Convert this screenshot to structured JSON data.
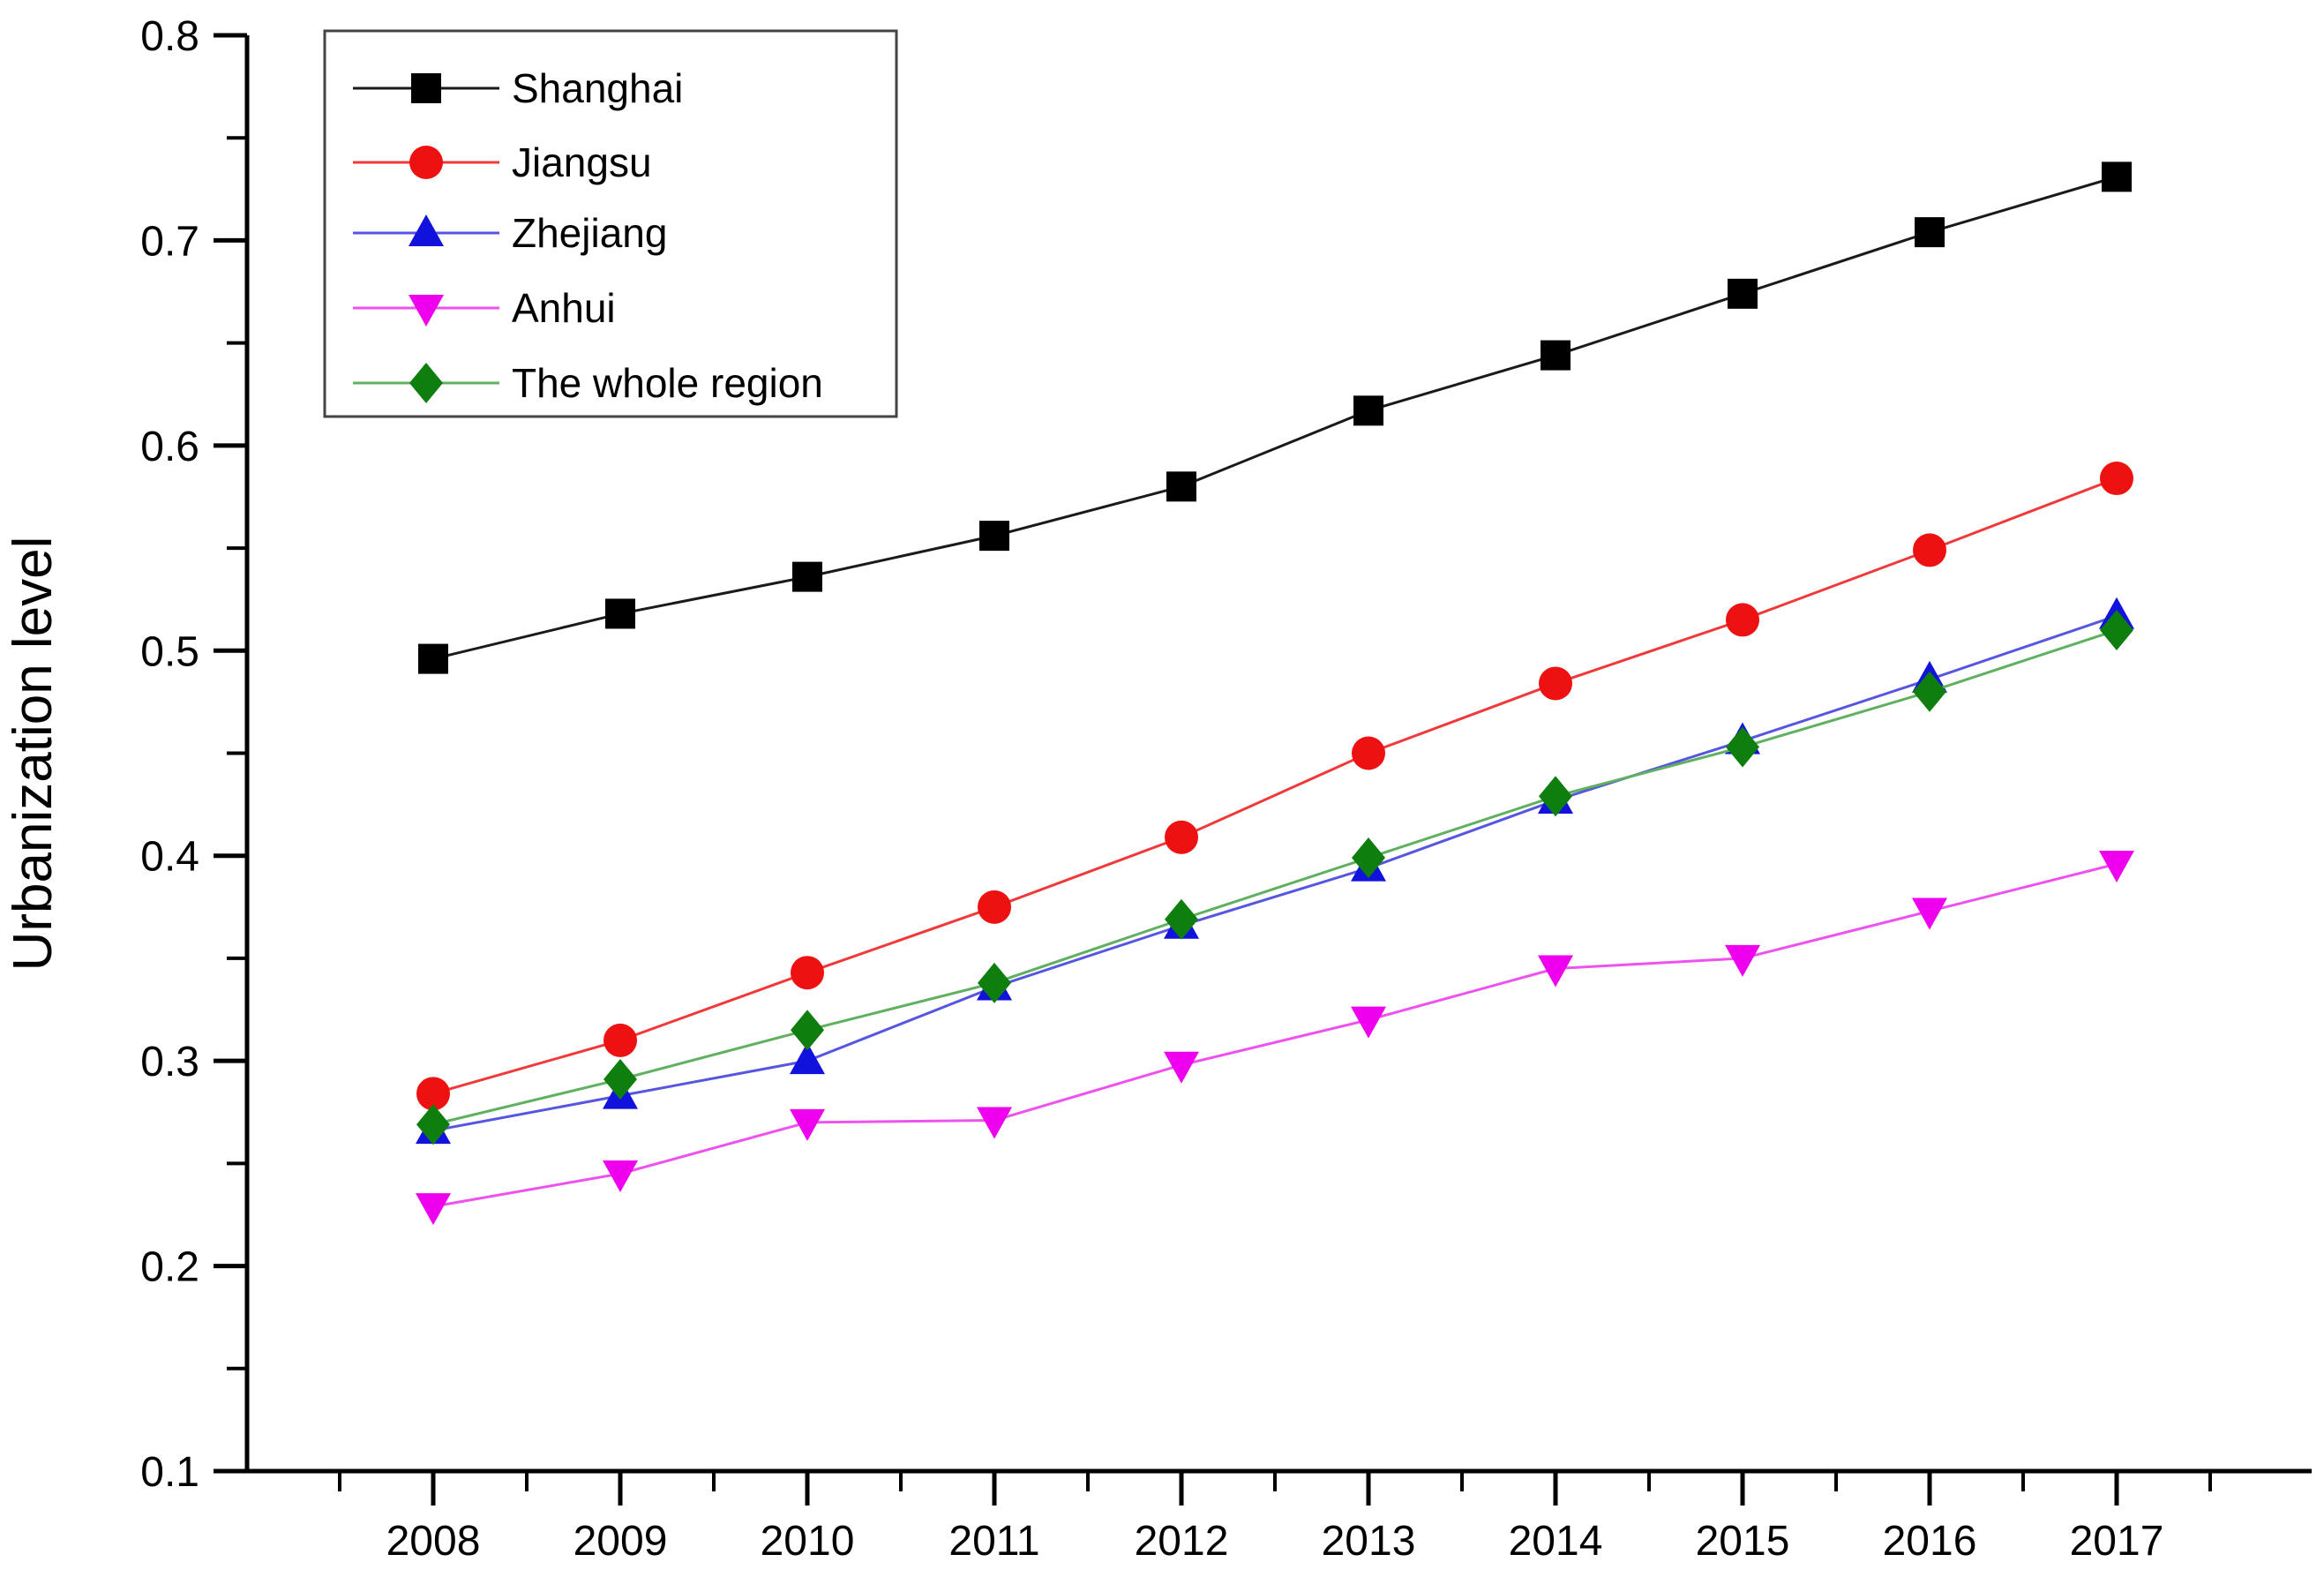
{
  "figure": {
    "background": "#ffffff"
  },
  "chart_data": {
    "type": "line",
    "title": "",
    "xlabel": "",
    "ylabel": "Urbanization level",
    "x": [
      2008,
      2009,
      2010,
      2011,
      2012,
      2013,
      2014,
      2015,
      2016,
      2017
    ],
    "x_tick_labels": [
      "2008",
      "2009",
      "2010",
      "2011",
      "2012",
      "2013",
      "2014",
      "2015",
      "2016",
      "2017"
    ],
    "y_tick_labels": [
      "0.1",
      "0.2",
      "0.3",
      "0.4",
      "0.5",
      "0.6",
      "0.7",
      "0.8"
    ],
    "ylim": [
      0.1,
      0.8
    ],
    "y_major_step": 0.1,
    "y_minor_step": 0.05,
    "grid": false,
    "legend_position": "top-left",
    "series": [
      {
        "name": "Shanghai",
        "slug": "shanghai",
        "marker": "square",
        "marker_color": "#000000",
        "line_color": "#1a1a1a",
        "values": [
          0.496,
          0.518,
          0.536,
          0.556,
          0.58,
          0.617,
          0.644,
          0.674,
          0.704,
          0.731
        ]
      },
      {
        "name": "Jiangsu",
        "slug": "jiangsu",
        "marker": "circle",
        "marker_color": "#ee1111",
        "line_color": "#f03a3a",
        "values": [
          0.284,
          0.31,
          0.343,
          0.375,
          0.409,
          0.45,
          0.484,
          0.515,
          0.549,
          0.584
        ]
      },
      {
        "name": "Zhejiang",
        "slug": "zhejiang",
        "marker": "triangle-up",
        "marker_color": "#1212dd",
        "line_color": "#5656e0",
        "values": [
          0.266,
          0.283,
          0.3,
          0.336,
          0.366,
          0.394,
          0.427,
          0.456,
          0.486,
          0.517
        ]
      },
      {
        "name": "Anhui",
        "slug": "anhui",
        "marker": "triangle-down",
        "marker_color": "#ee00ee",
        "line_color": "#ee52ee",
        "values": [
          0.229,
          0.245,
          0.27,
          0.271,
          0.298,
          0.32,
          0.345,
          0.35,
          0.373,
          0.396
        ]
      },
      {
        "name": "The whole region",
        "slug": "whole-region",
        "marker": "diamond",
        "marker_color": "#0e7e0e",
        "line_color": "#5fb05f",
        "values": [
          0.269,
          0.291,
          0.315,
          0.338,
          0.369,
          0.399,
          0.429,
          0.453,
          0.48,
          0.51
        ]
      }
    ]
  }
}
